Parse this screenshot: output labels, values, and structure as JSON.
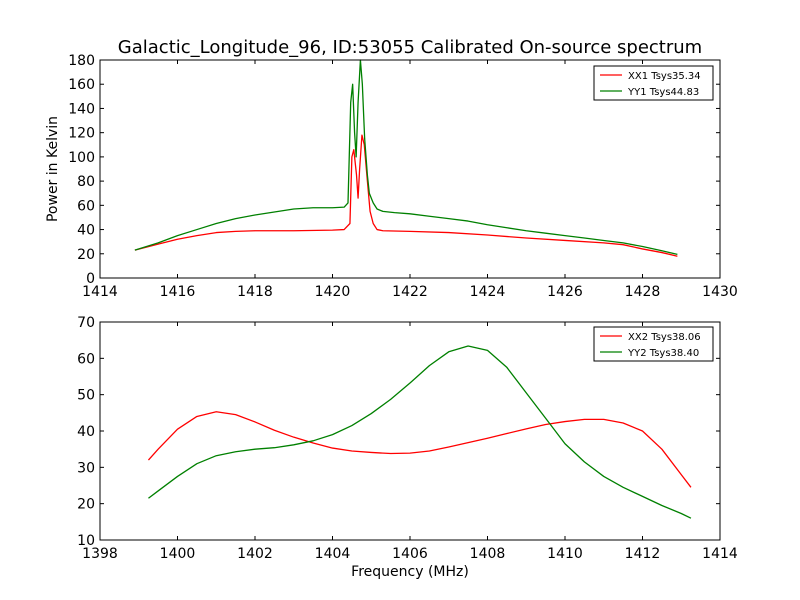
{
  "figure": {
    "title": "Galactic_Longitude_96, ID:53055 Calibrated On-source spectrum"
  },
  "chart_data": [
    {
      "type": "line",
      "title": "Galactic_Longitude_96, ID:53055 Calibrated On-source spectrum",
      "xlabel": "",
      "ylabel": "Power in Kelvin",
      "xlim": [
        1414,
        1430
      ],
      "ylim": [
        0,
        180
      ],
      "xticks": [
        "1414",
        "1416",
        "1418",
        "1420",
        "1422",
        "1424",
        "1426",
        "1428",
        "1430"
      ],
      "yticks": [
        "0",
        "20",
        "40",
        "60",
        "80",
        "100",
        "120",
        "140",
        "160",
        "180"
      ],
      "grid": false,
      "legend_position": "top-right",
      "series": [
        {
          "name": "XX1 Tsys35.34",
          "color": "#ff0000",
          "points": [
            [
              1414.9,
              23
            ],
            [
              1415.5,
              28
            ],
            [
              1416,
              32
            ],
            [
              1416.5,
              35
            ],
            [
              1417,
              37.5
            ],
            [
              1417.5,
              38.5
            ],
            [
              1418,
              39
            ],
            [
              1419,
              39
            ],
            [
              1420,
              39.5
            ],
            [
              1420.3,
              40
            ],
            [
              1420.45,
              45
            ],
            [
              1420.5,
              100
            ],
            [
              1420.55,
              106
            ],
            [
              1420.62,
              85
            ],
            [
              1420.66,
              66
            ],
            [
              1420.7,
              90
            ],
            [
              1420.76,
              118
            ],
            [
              1420.82,
              110
            ],
            [
              1420.9,
              80
            ],
            [
              1420.97,
              55
            ],
            [
              1421.05,
              45
            ],
            [
              1421.15,
              40
            ],
            [
              1421.3,
              39
            ],
            [
              1422,
              38.5
            ],
            [
              1423,
              37.5
            ],
            [
              1424,
              35.5
            ],
            [
              1425,
              33
            ],
            [
              1426,
              31
            ],
            [
              1427,
              29
            ],
            [
              1427.5,
              27.5
            ],
            [
              1428,
              24
            ],
            [
              1428.5,
              21
            ],
            [
              1428.9,
              18
            ]
          ]
        },
        {
          "name": "YY1 Tsys44.83",
          "color": "#008000",
          "points": [
            [
              1414.9,
              23
            ],
            [
              1415.5,
              29
            ],
            [
              1416,
              35
            ],
            [
              1416.5,
              40
            ],
            [
              1417,
              45
            ],
            [
              1417.5,
              49
            ],
            [
              1418,
              52
            ],
            [
              1418.5,
              54.5
            ],
            [
              1419,
              57
            ],
            [
              1419.5,
              58
            ],
            [
              1420,
              58
            ],
            [
              1420.3,
              58.5
            ],
            [
              1420.4,
              62
            ],
            [
              1420.47,
              145
            ],
            [
              1420.52,
              160
            ],
            [
              1420.57,
              120
            ],
            [
              1420.61,
              100
            ],
            [
              1420.66,
              145
            ],
            [
              1420.72,
              180
            ],
            [
              1420.77,
              160
            ],
            [
              1420.83,
              115
            ],
            [
              1420.9,
              85
            ],
            [
              1420.95,
              70
            ],
            [
              1421.05,
              62
            ],
            [
              1421.15,
              57
            ],
            [
              1421.3,
              55
            ],
            [
              1421.6,
              54
            ],
            [
              1422,
              53
            ],
            [
              1422.5,
              51
            ],
            [
              1423,
              49
            ],
            [
              1423.5,
              47
            ],
            [
              1424,
              44
            ],
            [
              1424.5,
              41.5
            ],
            [
              1425,
              39
            ],
            [
              1425.5,
              37
            ],
            [
              1426,
              35
            ],
            [
              1426.5,
              33
            ],
            [
              1427,
              31
            ],
            [
              1427.5,
              29
            ],
            [
              1428,
              26
            ],
            [
              1428.5,
              22.5
            ],
            [
              1428.9,
              19.5
            ]
          ]
        }
      ]
    },
    {
      "type": "line",
      "title": "",
      "xlabel": "Frequency (MHz)",
      "ylabel": "",
      "xlim": [
        1398,
        1414
      ],
      "ylim": [
        10,
        70
      ],
      "xticks": [
        "1398",
        "1400",
        "1402",
        "1404",
        "1406",
        "1408",
        "1410",
        "1412",
        "1414"
      ],
      "yticks": [
        "10",
        "20",
        "30",
        "40",
        "50",
        "60",
        "70"
      ],
      "grid": false,
      "legend_position": "top-right",
      "series": [
        {
          "name": "XX2 Tsys38.06",
          "color": "#ff0000",
          "points": [
            [
              1399.25,
              32
            ],
            [
              1399.5,
              35
            ],
            [
              1400,
              40.5
            ],
            [
              1400.5,
              44
            ],
            [
              1401,
              45.3
            ],
            [
              1401.5,
              44.5
            ],
            [
              1402,
              42.5
            ],
            [
              1402.5,
              40.2
            ],
            [
              1403,
              38.3
            ],
            [
              1403.5,
              36.7
            ],
            [
              1404,
              35.3
            ],
            [
              1404.5,
              34.5
            ],
            [
              1405,
              34.1
            ],
            [
              1405.5,
              33.8
            ],
            [
              1406,
              33.9
            ],
            [
              1406.5,
              34.5
            ],
            [
              1407,
              35.6
            ],
            [
              1407.5,
              36.8
            ],
            [
              1408,
              38
            ],
            [
              1408.5,
              39.3
            ],
            [
              1409,
              40.6
            ],
            [
              1409.5,
              41.8
            ],
            [
              1410,
              42.6
            ],
            [
              1410.5,
              43.2
            ],
            [
              1411,
              43.2
            ],
            [
              1411.5,
              42.2
            ],
            [
              1412,
              40
            ],
            [
              1412.5,
              35
            ],
            [
              1413,
              28
            ],
            [
              1413.25,
              24.5
            ]
          ]
        },
        {
          "name": "YY2 Tsys38.40",
          "color": "#008000",
          "points": [
            [
              1399.25,
              21.5
            ],
            [
              1399.5,
              23.5
            ],
            [
              1400,
              27.5
            ],
            [
              1400.5,
              31
            ],
            [
              1401,
              33.2
            ],
            [
              1401.5,
              34.3
            ],
            [
              1402,
              35
            ],
            [
              1402.5,
              35.4
            ],
            [
              1403,
              36.2
            ],
            [
              1403.5,
              37.3
            ],
            [
              1404,
              39
            ],
            [
              1404.5,
              41.5
            ],
            [
              1405,
              44.8
            ],
            [
              1405.5,
              48.7
            ],
            [
              1406,
              53.2
            ],
            [
              1406.5,
              58
            ],
            [
              1407,
              61.8
            ],
            [
              1407.5,
              63.4
            ],
            [
              1408,
              62.2
            ],
            [
              1408.5,
              57.5
            ],
            [
              1409,
              50.5
            ],
            [
              1409.5,
              43.5
            ],
            [
              1410,
              36.5
            ],
            [
              1410.5,
              31.5
            ],
            [
              1411,
              27.5
            ],
            [
              1411.5,
              24.5
            ],
            [
              1412,
              22
            ],
            [
              1412.5,
              19.5
            ],
            [
              1413,
              17.3
            ],
            [
              1413.25,
              16
            ]
          ]
        }
      ]
    }
  ]
}
